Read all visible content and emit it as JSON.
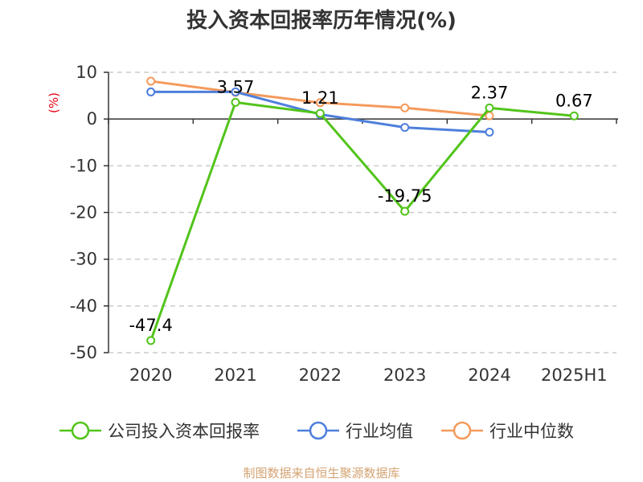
{
  "chart_data": {
    "type": "line",
    "title": "投入资本回报率历年情况(%)",
    "ylabel": "(%)",
    "categories": [
      "2020",
      "2021",
      "2022",
      "2023",
      "2024",
      "2025H1"
    ],
    "ylim": [
      -50,
      10
    ],
    "yticks": [
      10,
      0,
      -10,
      -20,
      -30,
      -40,
      -50
    ],
    "grid": true,
    "legend_position": "bottom",
    "series": [
      {
        "name": "公司投入资本回报率",
        "color": "#52c41a",
        "values": [
          -47.4,
          3.57,
          1.21,
          -19.75,
          2.37,
          0.67
        ],
        "labels": [
          "-47.4",
          "3.57",
          "1.21",
          "-19.75",
          "2.37",
          "0.67"
        ]
      },
      {
        "name": "行业均值",
        "color": "#4e7fdc",
        "values": [
          5.8,
          5.8,
          1.0,
          -1.8,
          -2.8,
          null
        ]
      },
      {
        "name": "行业中位数",
        "color": "#f59a5c",
        "values": [
          8.1,
          5.7,
          3.5,
          2.4,
          0.7,
          null
        ]
      }
    ]
  },
  "source": "制图数据来自恒生聚源数据库"
}
